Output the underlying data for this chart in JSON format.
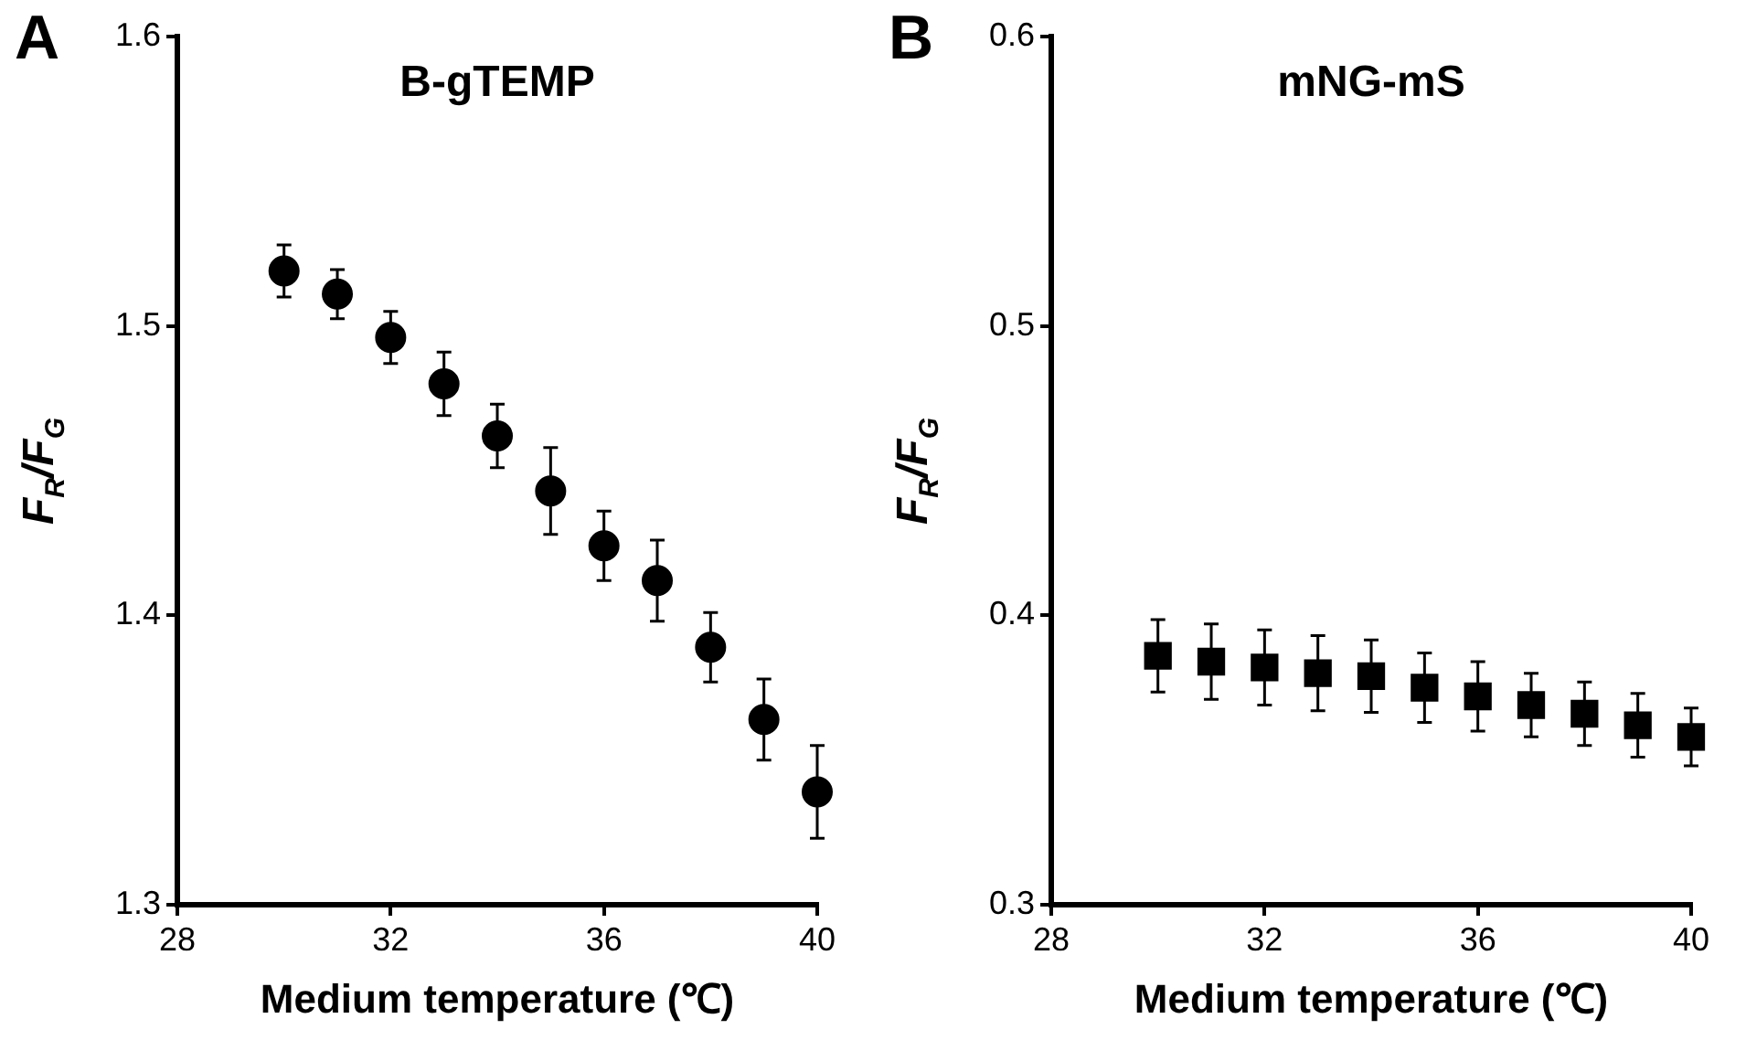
{
  "chart_data": [
    {
      "type": "scatter",
      "title": "B-gTEMP",
      "xlabel": "Medium temperature (℃)",
      "ylabel": "F$_{R}$/F$_{G}$",
      "annotations": [
        "A"
      ],
      "marker": "circle",
      "grid": false,
      "legend": false,
      "x": [
        30,
        31,
        32,
        33,
        34,
        35,
        36,
        37,
        38,
        39,
        40
      ],
      "series": [
        {
          "color": "#000000",
          "values": [
            1.519,
            1.511,
            1.496,
            1.48,
            1.462,
            1.443,
            1.424,
            1.412,
            1.389,
            1.364,
            1.339
          ],
          "errors": [
            0.009,
            0.0085,
            0.009,
            0.011,
            0.011,
            0.015,
            0.012,
            0.014,
            0.012,
            0.014,
            0.016
          ]
        }
      ],
      "xlim": [
        28,
        40
      ],
      "xticks": [
        28,
        32,
        36,
        40
      ],
      "ylim": [
        1.3,
        1.6
      ],
      "yticks": [
        1.3,
        1.4,
        1.5,
        1.6
      ]
    },
    {
      "type": "scatter",
      "title": "mNG-mS",
      "xlabel": "Medium temperature (℃)",
      "ylabel": "F$_{R}$/F$_{G}$",
      "annotations": [
        "B"
      ],
      "marker": "square",
      "grid": false,
      "legend": false,
      "x": [
        30,
        31,
        32,
        33,
        34,
        35,
        36,
        37,
        38,
        39,
        40
      ],
      "series": [
        {
          "color": "#000000",
          "values": [
            0.386,
            0.384,
            0.382,
            0.38,
            0.379,
            0.375,
            0.372,
            0.369,
            0.366,
            0.362,
            0.358
          ],
          "errors": [
            0.0125,
            0.013,
            0.013,
            0.013,
            0.0125,
            0.012,
            0.012,
            0.011,
            0.011,
            0.011,
            0.01
          ]
        }
      ],
      "xlim": [
        28,
        40
      ],
      "xticks": [
        28,
        32,
        36,
        40
      ],
      "ylim": [
        0.3,
        0.6
      ],
      "yticks": [
        0.3,
        0.4,
        0.5,
        0.6
      ]
    }
  ]
}
